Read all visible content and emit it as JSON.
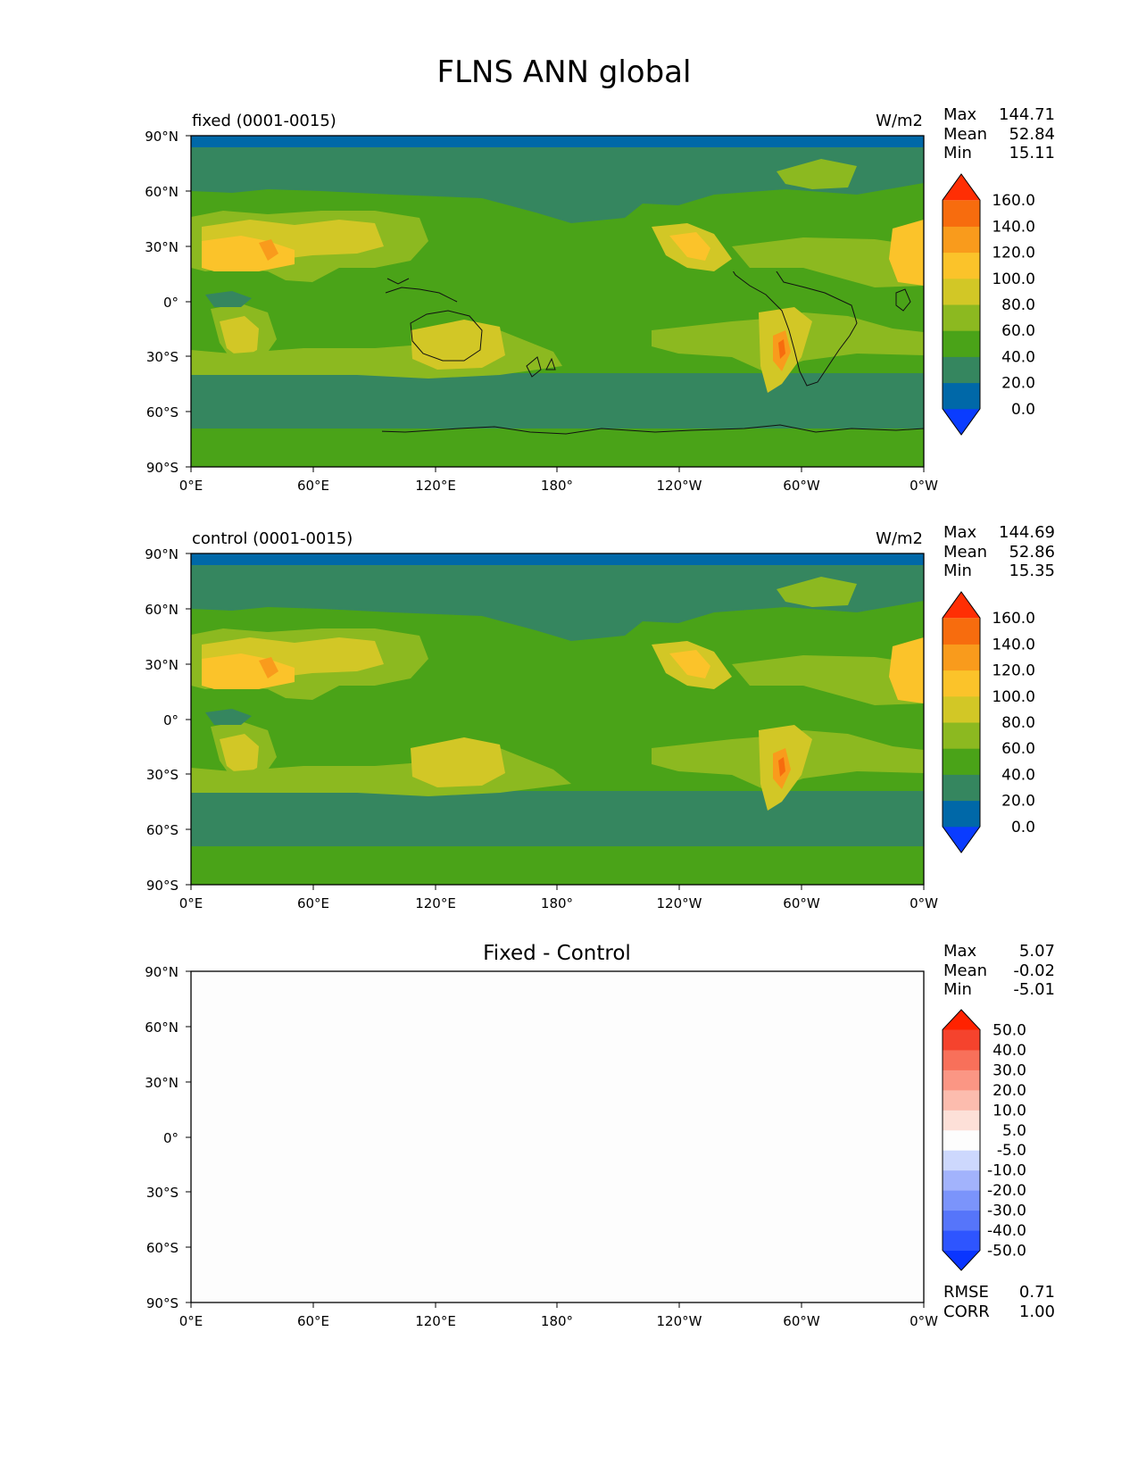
{
  "figure": {
    "title": "FLNS ANN global",
    "x_tick_labels": [
      "0°E",
      "60°E",
      "120°E",
      "180°",
      "120°W",
      "60°W",
      "0°W"
    ],
    "y_tick_labels": [
      "90°N",
      "60°N",
      "30°N",
      "0°",
      "30°S",
      "60°S",
      "90°S"
    ]
  },
  "chart_data": [
    {
      "type": "heatmap",
      "panel": "fixed",
      "left_title": "fixed (0001-0015)",
      "units": "W/m2",
      "stats": [
        {
          "label": "Max",
          "value": "144.71"
        },
        {
          "label": "Mean",
          "value": "52.84"
        },
        {
          "label": "Min",
          "value": "15.11"
        }
      ],
      "colorbar": {
        "levels": [
          "0.0",
          "20.0",
          "40.0",
          "60.0",
          "80.0",
          "100.0",
          "120.0",
          "140.0",
          "160.0"
        ],
        "colors": [
          "#0a3cff",
          "#0068a8",
          "#35865f",
          "#4aa318",
          "#8cb920",
          "#d2c726",
          "#fbc32a",
          "#f99b1c",
          "#f76c0e",
          "#ff2e04"
        ]
      },
      "xlim": [
        0,
        360
      ],
      "ylim": [
        -90,
        90
      ]
    },
    {
      "type": "heatmap",
      "panel": "control",
      "left_title": "control (0001-0015)",
      "units": "W/m2",
      "stats": [
        {
          "label": "Max",
          "value": "144.69"
        },
        {
          "label": "Mean",
          "value": "52.86"
        },
        {
          "label": "Min",
          "value": "15.35"
        }
      ],
      "colorbar": {
        "levels": [
          "0.0",
          "20.0",
          "40.0",
          "60.0",
          "80.0",
          "100.0",
          "120.0",
          "140.0",
          "160.0"
        ],
        "colors": [
          "#0a3cff",
          "#0068a8",
          "#35865f",
          "#4aa318",
          "#8cb920",
          "#d2c726",
          "#fbc32a",
          "#f99b1c",
          "#f76c0e",
          "#ff2e04"
        ]
      },
      "xlim": [
        0,
        360
      ],
      "ylim": [
        -90,
        90
      ]
    },
    {
      "type": "heatmap",
      "panel": "difference",
      "title": "Fixed - Control",
      "stats": [
        {
          "label": "Max",
          "value": "5.07"
        },
        {
          "label": "Mean",
          "value": "-0.02"
        },
        {
          "label": "Min",
          "value": "-5.01"
        }
      ],
      "colorbar": {
        "levels": [
          "-50.0",
          "-40.0",
          "-30.0",
          "-20.0",
          "-10.0",
          "-5.0",
          "5.0",
          "10.0",
          "20.0",
          "30.0",
          "40.0",
          "50.0"
        ],
        "colors": [
          "#0a35ff",
          "#2e55ff",
          "#5675fa",
          "#7b94fb",
          "#a2b3fc",
          "#cdd8fd",
          "#fdfdfd",
          "#fde0d8",
          "#fcbcae",
          "#fb9684",
          "#f8705a",
          "#f5432d",
          "#ff2200"
        ]
      },
      "metrics": [
        {
          "label": "RMSE",
          "value": "0.71"
        },
        {
          "label": "CORR",
          "value": "1.00"
        }
      ],
      "xlim": [
        0,
        360
      ],
      "ylim": [
        -90,
        90
      ]
    }
  ]
}
